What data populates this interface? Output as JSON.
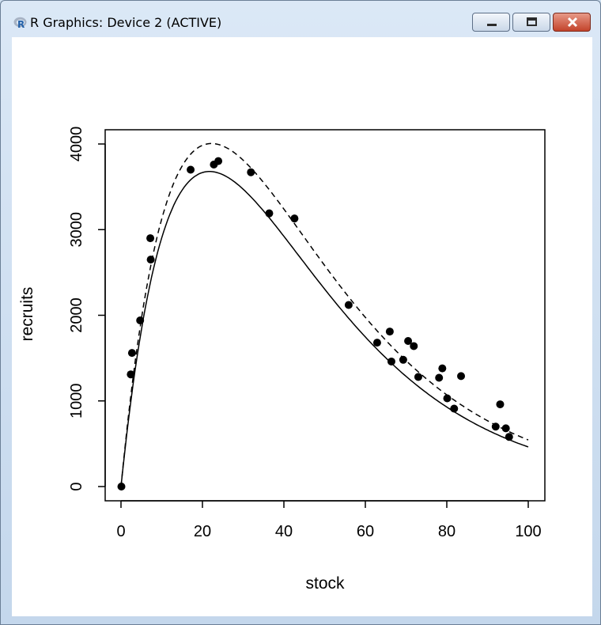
{
  "window": {
    "title": "R Graphics: Device 2 (ACTIVE)",
    "buttons": [
      "minimize",
      "maximize",
      "close"
    ]
  },
  "chart_data": {
    "type": "scatter",
    "xlabel": "stock",
    "ylabel": "recruits",
    "xlim": [
      0,
      100
    ],
    "ylim": [
      0,
      4000
    ],
    "x_ticks": [
      "0",
      "20",
      "40",
      "60",
      "80",
      "100"
    ],
    "y_ticks": [
      "0",
      "1000",
      "2000",
      "3000",
      "4000"
    ],
    "points": [
      {
        "x": 0.1,
        "y": 0
      },
      {
        "x": 2.4,
        "y": 1310
      },
      {
        "x": 2.7,
        "y": 1560
      },
      {
        "x": 4.7,
        "y": 1940
      },
      {
        "x": 7.2,
        "y": 2900
      },
      {
        "x": 7.3,
        "y": 2650
      },
      {
        "x": 17.1,
        "y": 3700
      },
      {
        "x": 22.8,
        "y": 3760
      },
      {
        "x": 23.9,
        "y": 3800
      },
      {
        "x": 31.9,
        "y": 3670
      },
      {
        "x": 36.4,
        "y": 3190
      },
      {
        "x": 42.6,
        "y": 3130
      },
      {
        "x": 55.9,
        "y": 2120
      },
      {
        "x": 62.9,
        "y": 1680
      },
      {
        "x": 66.0,
        "y": 1810
      },
      {
        "x": 66.4,
        "y": 1460
      },
      {
        "x": 69.3,
        "y": 1480
      },
      {
        "x": 70.5,
        "y": 1700
      },
      {
        "x": 71.9,
        "y": 1640
      },
      {
        "x": 73.0,
        "y": 1280
      },
      {
        "x": 78.1,
        "y": 1270
      },
      {
        "x": 78.9,
        "y": 1380
      },
      {
        "x": 80.1,
        "y": 1030
      },
      {
        "x": 81.8,
        "y": 910
      },
      {
        "x": 83.5,
        "y": 1290
      },
      {
        "x": 92.0,
        "y": 700
      },
      {
        "x": 93.1,
        "y": 960
      },
      {
        "x": 94.5,
        "y": 680
      },
      {
        "x": 95.3,
        "y": 580
      }
    ],
    "series": [
      {
        "style": "solid",
        "line_type": "ricker",
        "a": 460,
        "b": 0.046
      },
      {
        "style": "dashed",
        "line_type": "ricker",
        "a": 490,
        "b": 0.045
      }
    ],
    "grid": false,
    "point_color": "#000000",
    "line_color": "#000000"
  }
}
